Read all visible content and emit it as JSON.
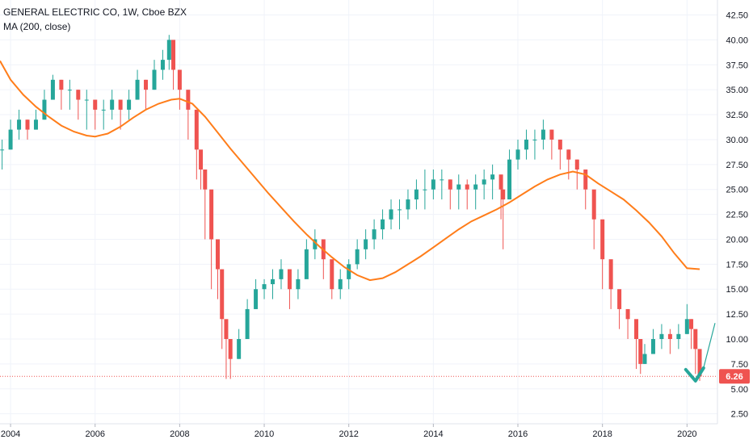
{
  "header": {
    "title": "GENERAL ELECTRIC CO, 1W, Cboe BZX",
    "indicator": "MA (200, close)"
  },
  "price_label": "6.26",
  "colors": {
    "up": "#26a69a",
    "down": "#ef5350",
    "ma": "#ff7d1a",
    "priceLine": "#ef5350",
    "grid": "#f0f3fa",
    "axis": "#131722",
    "arrow": "#26a69a"
  },
  "chart_data": {
    "type": "line",
    "title": "GENERAL ELECTRIC CO, 1W, Cboe BZX",
    "x_ticks": [
      "2004",
      "2006",
      "2008",
      "2010",
      "2012",
      "2014",
      "2016",
      "2018",
      "2020"
    ],
    "y_ticks": [
      "2.50",
      "5.00",
      "7.50",
      "10.00",
      "12.50",
      "15.00",
      "17.50",
      "20.00",
      "22.50",
      "25.00",
      "27.50",
      "30.00",
      "32.50",
      "35.00",
      "37.50",
      "40.00",
      "42.50"
    ],
    "ylim": [
      1.5,
      44
    ],
    "xlim": [
      2003.75,
      2020.72
    ],
    "last_price": 6.26,
    "grid": true,
    "series": [
      {
        "name": "GENERAL ELECTRIC CO",
        "style": "candles",
        "x": [
          2003.8,
          2004.0,
          2004.2,
          2004.4,
          2004.6,
          2004.8,
          2005.0,
          2005.2,
          2005.4,
          2005.6,
          2005.8,
          2006.0,
          2006.2,
          2006.4,
          2006.6,
          2006.8,
          2007.0,
          2007.2,
          2007.4,
          2007.6,
          2007.75,
          2007.85,
          2008.0,
          2008.2,
          2008.4,
          2008.5,
          2008.6,
          2008.75,
          2008.9,
          2009.0,
          2009.1,
          2009.2,
          2009.4,
          2009.6,
          2009.8,
          2010.0,
          2010.2,
          2010.4,
          2010.6,
          2010.8,
          2011.0,
          2011.2,
          2011.4,
          2011.6,
          2011.8,
          2012.0,
          2012.2,
          2012.4,
          2012.6,
          2012.8,
          2013.0,
          2013.2,
          2013.4,
          2013.6,
          2013.8,
          2014.0,
          2014.2,
          2014.4,
          2014.6,
          2014.8,
          2015.0,
          2015.2,
          2015.4,
          2015.6,
          2015.65,
          2015.8,
          2016.0,
          2016.2,
          2016.4,
          2016.6,
          2016.8,
          2017.0,
          2017.2,
          2017.4,
          2017.6,
          2017.8,
          2018.0,
          2018.2,
          2018.4,
          2018.6,
          2018.8,
          2018.9,
          2019.0,
          2019.2,
          2019.4,
          2019.6,
          2019.8,
          2020.0,
          2020.1,
          2020.2,
          2020.3
        ],
        "close": [
          29,
          31,
          32,
          31,
          32,
          34,
          36,
          35,
          35,
          34,
          34,
          33,
          33,
          34,
          33,
          34,
          36,
          35,
          37,
          38,
          40,
          37,
          35,
          33,
          29,
          27,
          25,
          20,
          17,
          12,
          10,
          8,
          10,
          13,
          15,
          15.5,
          16,
          17,
          15,
          16,
          19,
          20,
          18,
          15,
          16,
          17.5,
          19,
          20,
          21,
          22,
          23,
          23,
          24,
          25,
          25,
          26,
          26,
          25,
          25.5,
          25,
          25.5,
          26,
          26.5,
          25,
          24,
          28,
          29,
          30,
          30,
          31,
          30,
          29,
          28,
          27,
          25,
          22,
          18,
          15,
          13,
          12,
          10,
          7.5,
          8.5,
          10,
          10.5,
          10,
          10.5,
          12,
          11,
          9,
          6.26
        ],
        "high": [
          30,
          32,
          33,
          32,
          33,
          35,
          36.5,
          36,
          36,
          35,
          35,
          34,
          34,
          35,
          34,
          35,
          37,
          36,
          38,
          39,
          40.5,
          38,
          36,
          34,
          30,
          28,
          26,
          21,
          18,
          13,
          11,
          9,
          11,
          14,
          16,
          16,
          17,
          18,
          16,
          17,
          20,
          21,
          19,
          16,
          17,
          18,
          20,
          21,
          22,
          23,
          24,
          24,
          25,
          26,
          27,
          27,
          27,
          26,
          26.5,
          26,
          26.5,
          27,
          27.5,
          26,
          25,
          29,
          30,
          31,
          31,
          32,
          31,
          30,
          29,
          28,
          26,
          23,
          19,
          16,
          14,
          13,
          11,
          8.5,
          9.5,
          11,
          11.5,
          11,
          11.5,
          13.5,
          12,
          10,
          7.5
        ],
        "low": [
          27,
          29,
          30,
          30,
          31,
          32,
          34,
          33,
          33,
          32,
          31,
          31,
          31,
          32,
          31,
          32,
          34,
          33,
          35,
          36,
          37,
          35,
          33,
          30,
          26,
          25,
          20,
          15,
          14,
          9,
          6,
          6,
          8,
          11,
          13,
          14,
          14,
          15,
          13,
          14,
          17,
          18,
          16,
          14,
          14,
          15,
          17,
          18,
          19,
          20,
          21,
          21,
          22,
          23,
          23,
          24,
          24,
          23,
          23,
          23,
          23,
          24,
          24,
          22,
          19,
          25,
          27,
          28,
          28,
          29,
          28,
          27,
          26,
          25,
          23,
          19,
          15,
          13,
          11,
          10,
          7,
          6.5,
          7.5,
          8.5,
          9,
          8.5,
          9,
          10.5,
          9,
          6.5,
          5.8
        ]
      },
      {
        "name": "MA (200, close)",
        "x": [
          2003.75,
          2004.0,
          2004.3,
          2004.6,
          2004.9,
          2005.2,
          2005.5,
          2005.8,
          2006.0,
          2006.3,
          2006.6,
          2006.9,
          2007.2,
          2007.5,
          2007.8,
          2008.0,
          2008.3,
          2008.6,
          2008.9,
          2009.2,
          2009.5,
          2009.8,
          2010.1,
          2010.4,
          2010.7,
          2011.0,
          2011.3,
          2011.6,
          2011.9,
          2012.2,
          2012.5,
          2012.8,
          2013.1,
          2013.4,
          2013.7,
          2014.0,
          2014.3,
          2014.6,
          2014.9,
          2015.2,
          2015.5,
          2015.8,
          2016.1,
          2016.4,
          2016.7,
          2017.0,
          2017.3,
          2017.6,
          2017.9,
          2018.2,
          2018.5,
          2018.8,
          2019.1,
          2019.4,
          2019.7,
          2020.0,
          2020.3
        ],
        "values": [
          37.9,
          36.0,
          34.5,
          33.3,
          32.3,
          31.4,
          30.8,
          30.4,
          30.3,
          30.6,
          31.3,
          32.2,
          33.0,
          33.6,
          34.0,
          34.1,
          33.6,
          32.3,
          30.7,
          29.1,
          27.6,
          26.1,
          24.6,
          23.2,
          21.8,
          20.5,
          19.3,
          18.2,
          17.2,
          16.4,
          15.9,
          16.1,
          16.7,
          17.5,
          18.3,
          19.2,
          20.1,
          21.0,
          21.8,
          22.4,
          23.0,
          23.7,
          24.5,
          25.3,
          26.0,
          26.5,
          26.8,
          26.5,
          25.6,
          24.8,
          24.0,
          22.9,
          21.7,
          20.3,
          18.6,
          17.1,
          17.0
        ]
      }
    ]
  }
}
